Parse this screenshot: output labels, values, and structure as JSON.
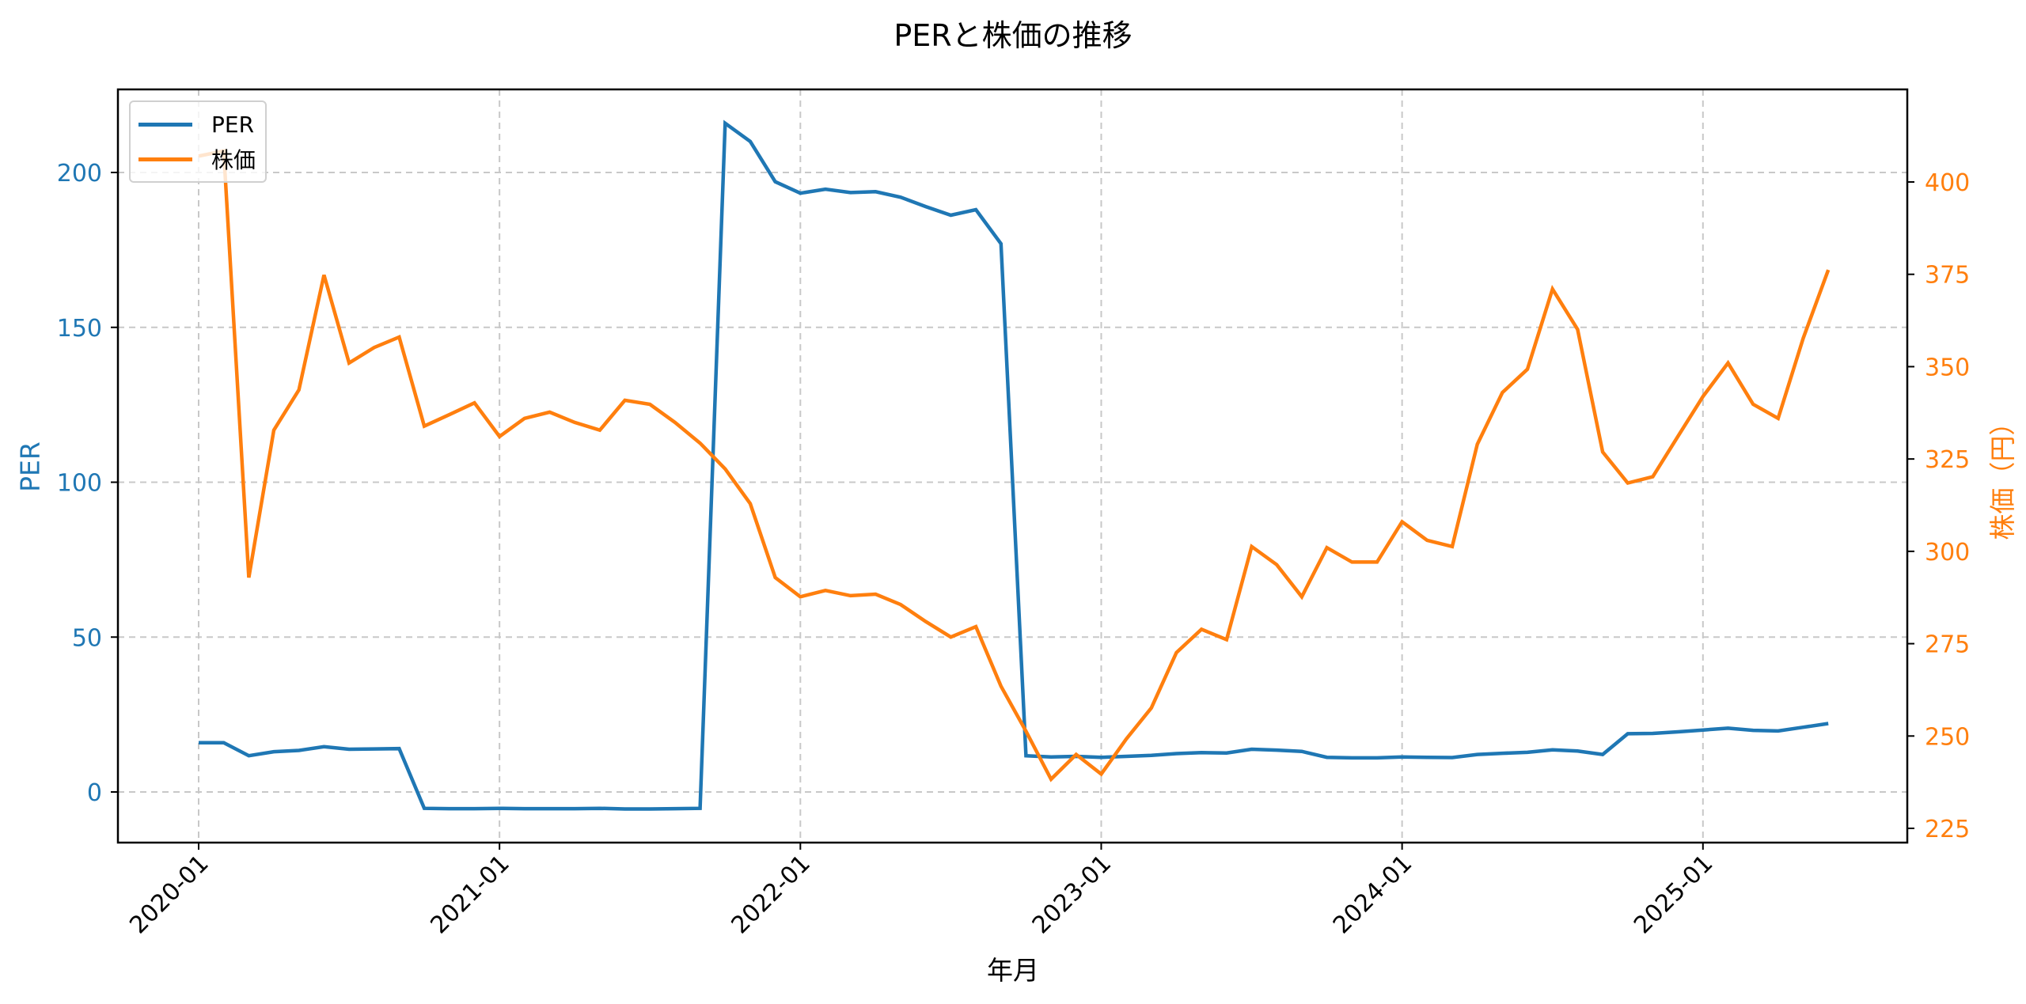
{
  "chart_data": {
    "type": "line",
    "title": "PERと株価の推移",
    "xlabel": "年月",
    "ylabel": "PER",
    "ylabel_right": "株価（円）",
    "x_tick_labels": [
      "2020-01",
      "2021-01",
      "2022-01",
      "2023-01",
      "2024-01",
      "2025-01"
    ],
    "y_ticks_left": [
      0,
      50,
      100,
      150,
      200
    ],
    "y_ticks_right": [
      225,
      250,
      275,
      300,
      325,
      350,
      375,
      400
    ],
    "ylim_left": [
      -17,
      226
    ],
    "ylim_right": [
      221,
      418
    ],
    "grid": true,
    "legend_position": "upper left",
    "x": [
      "2020-01",
      "2020-02",
      "2020-03",
      "2020-04",
      "2020-05",
      "2020-06",
      "2020-07",
      "2020-08",
      "2020-09",
      "2020-10",
      "2020-11",
      "2020-12",
      "2021-01",
      "2021-02",
      "2021-03",
      "2021-04",
      "2021-05",
      "2021-06",
      "2021-07",
      "2021-08",
      "2021-09",
      "2021-10",
      "2021-11",
      "2021-12",
      "2022-01",
      "2022-02",
      "2022-03",
      "2022-04",
      "2022-05",
      "2022-06",
      "2022-07",
      "2022-08",
      "2022-09",
      "2022-10",
      "2022-11",
      "2022-12",
      "2023-01",
      "2023-02",
      "2023-03",
      "2023-04",
      "2023-05",
      "2023-06",
      "2023-07",
      "2023-08",
      "2023-09",
      "2023-10",
      "2023-11",
      "2023-12",
      "2024-01",
      "2024-02",
      "2024-03",
      "2024-04",
      "2024-05",
      "2024-06",
      "2024-07",
      "2024-08",
      "2024-09",
      "2024-10",
      "2024-11",
      "2024-12",
      "2025-01",
      "2025-02",
      "2025-03",
      "2025-04",
      "2025-05",
      "2025-06"
    ],
    "series": [
      {
        "name": "PER",
        "axis": "left",
        "color": "#1f77b4",
        "values": [
          15.9,
          15.9,
          11.7,
          13.0,
          13.4,
          14.6,
          13.8,
          13.9,
          14.0,
          -5.3,
          -5.4,
          -5.4,
          -5.3,
          -5.4,
          -5.4,
          -5.4,
          -5.3,
          -5.5,
          -5.5,
          -5.4,
          -5.3,
          215.9,
          210.0,
          197.0,
          193.3,
          194.6,
          193.5,
          193.8,
          192.0,
          189.0,
          186.2,
          188.0,
          177.0,
          11.7,
          11.3,
          11.5,
          11.2,
          11.5,
          11.8,
          12.4,
          12.7,
          12.6,
          13.8,
          13.5,
          13.1,
          11.2,
          11.0,
          11.0,
          11.3,
          11.2,
          11.1,
          12.1,
          12.5,
          12.8,
          13.6,
          13.2,
          12.1,
          18.8,
          18.9,
          19.4,
          20.0,
          20.6,
          19.9,
          19.7,
          20.9,
          22.1
        ]
      },
      {
        "name": "株価",
        "axis": "right",
        "color": "#ff7f0e",
        "values": [
          407.0,
          408.4,
          292.9,
          332.8,
          343.7,
          374.8,
          351.0,
          355.2,
          358.0,
          333.9,
          337.0,
          340.2,
          331.1,
          336.0,
          337.7,
          334.9,
          332.8,
          340.9,
          339.8,
          334.9,
          329.3,
          322.3,
          312.9,
          292.9,
          287.7,
          289.4,
          288.0,
          288.4,
          285.6,
          281.0,
          276.8,
          279.6,
          263.5,
          251.3,
          238.3,
          245.0,
          239.7,
          249.2,
          257.6,
          272.6,
          278.9,
          276.1,
          301.3,
          296.4,
          287.7,
          301.0,
          297.1,
          297.1,
          308.0,
          303.0,
          301.3,
          329.0,
          343.0,
          349.3,
          371.0,
          360.1,
          326.9,
          318.5,
          320.2,
          331.1,
          341.9,
          351.0,
          339.8,
          336.0,
          357.7,
          376.2
        ]
      }
    ]
  },
  "legend": {
    "items": [
      {
        "label": "PER",
        "color": "#1f77b4"
      },
      {
        "label": "株価",
        "color": "#ff7f0e"
      }
    ]
  }
}
